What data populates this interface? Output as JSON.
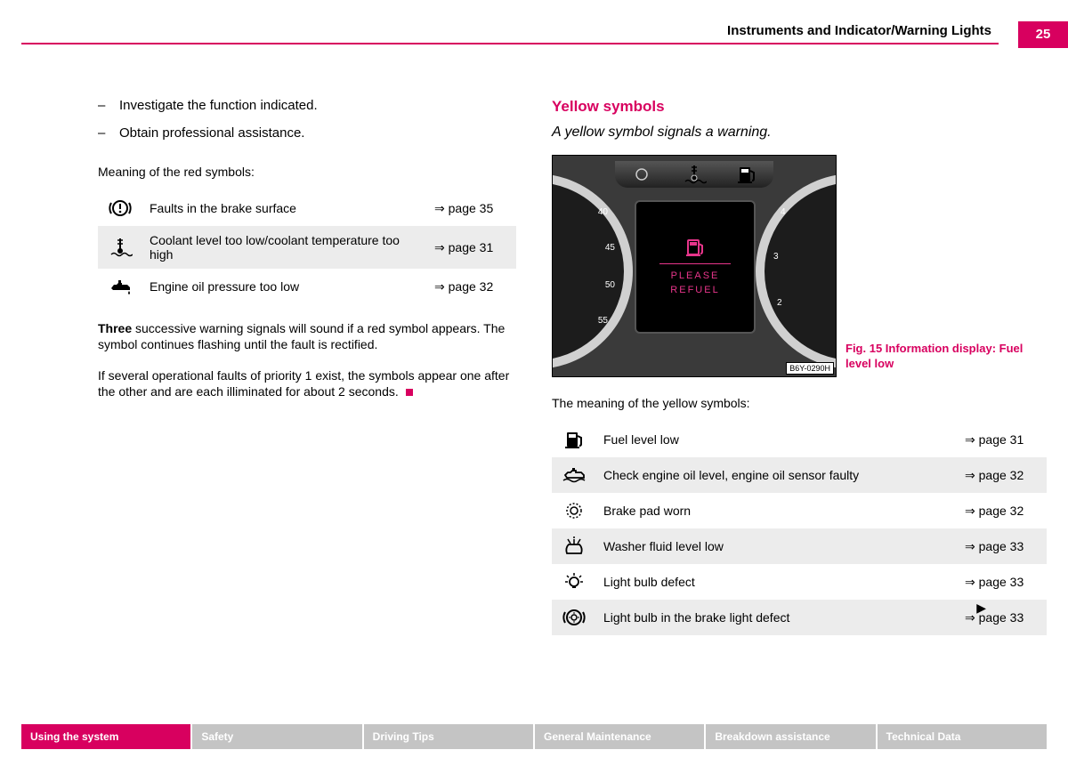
{
  "header": {
    "title": "Instruments and Indicator/Warning Lights",
    "page_number": "25"
  },
  "left": {
    "bullets": [
      "Investigate the function indicated.",
      "Obtain professional assistance."
    ],
    "meaning_label": "Meaning of the red symbols:",
    "red_table": [
      {
        "icon": "brake-warning-icon",
        "desc": "Faults in the brake surface",
        "page": "page 35"
      },
      {
        "icon": "coolant-temp-icon",
        "desc": "Coolant level too low/coolant temperature too high",
        "page": "page 31"
      },
      {
        "icon": "oil-pressure-icon",
        "desc": "Engine oil pressure too low",
        "page": "page 32"
      }
    ],
    "para1_bold": "Three",
    "para1_rest": " successive warning signals will sound if a red symbol appears. The symbol continues flashing until the fault is rectified.",
    "para2": "If several operational faults of priority 1 exist, the symbols appear one after the other and are each illiminated for about 2 seconds."
  },
  "right": {
    "heading": "Yellow symbols",
    "subtitle": "A yellow symbol signals a warning.",
    "figure": {
      "screen_line1": "PLEASE",
      "screen_line2": "REFUEL",
      "ticks_left": [
        "40",
        "45",
        "50",
        "55"
      ],
      "ticks_right": [
        "4",
        "3",
        "2"
      ],
      "code": "B6Y-0290H",
      "caption": "Fig. 15   Information display: Fuel level low"
    },
    "meaning_label": "The meaning of the yellow symbols:",
    "yellow_table": [
      {
        "icon": "fuel-icon",
        "desc": "Fuel level low",
        "page": "page 31"
      },
      {
        "icon": "oil-level-icon",
        "desc": "Check engine oil level, engine oil sensor faulty",
        "page": "page 32"
      },
      {
        "icon": "brake-pad-icon",
        "desc": "Brake pad worn",
        "page": "page 32"
      },
      {
        "icon": "washer-fluid-icon",
        "desc": "Washer fluid level low",
        "page": "page 33"
      },
      {
        "icon": "light-bulb-icon",
        "desc": "Light bulb defect",
        "page": "page 33"
      },
      {
        "icon": "brake-light-icon",
        "desc": "Light bulb in the brake light defect",
        "page": "page 33"
      }
    ]
  },
  "tabs": [
    {
      "label": "Using the system",
      "active": true
    },
    {
      "label": "Safety",
      "active": false
    },
    {
      "label": "Driving Tips",
      "active": false
    },
    {
      "label": "General Maintenance",
      "active": false
    },
    {
      "label": "Breakdown assistance",
      "active": false
    },
    {
      "label": "Technical Data",
      "active": false
    }
  ],
  "arrow_glyph": "⇒",
  "continue_glyph": "▶"
}
